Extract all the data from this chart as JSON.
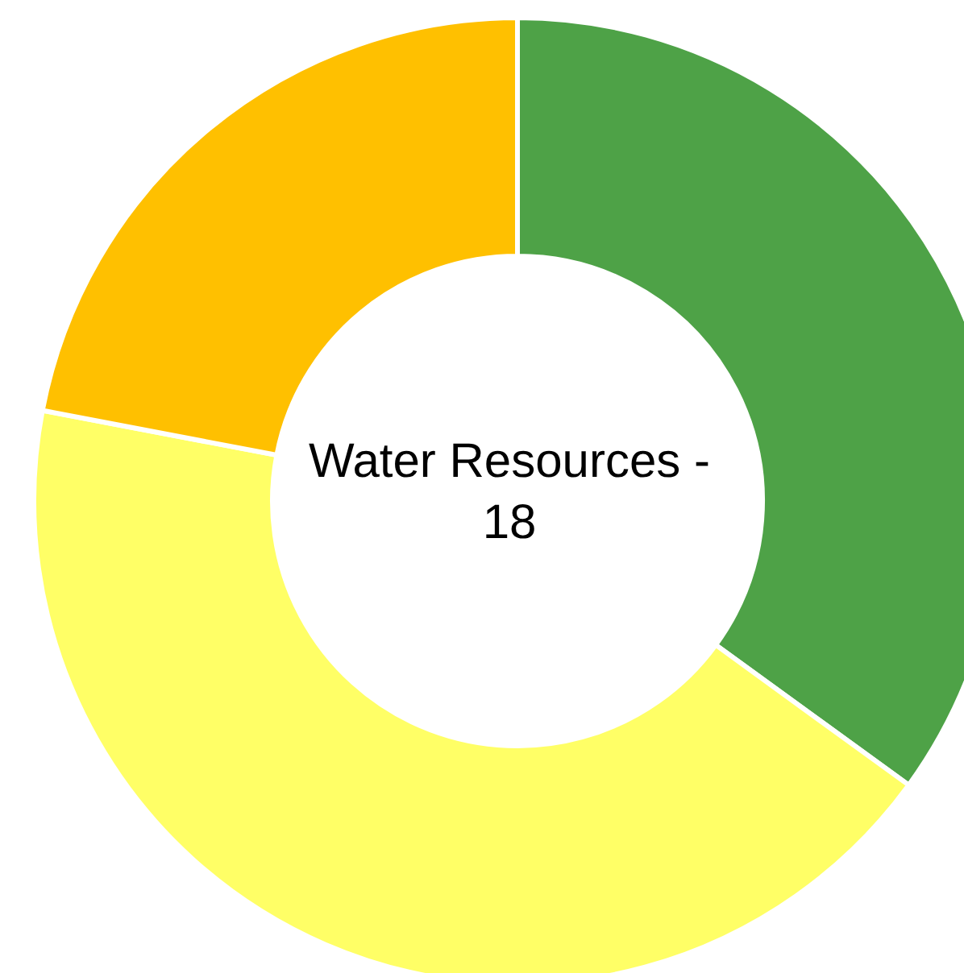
{
  "chart_data": {
    "type": "donut",
    "title": "Water Resources - 18",
    "categories": [
      null,
      null,
      null
    ],
    "values": [
      35,
      43,
      22
    ],
    "colors": [
      "#4ea247",
      "#ffff66",
      "#ffc000"
    ]
  }
}
